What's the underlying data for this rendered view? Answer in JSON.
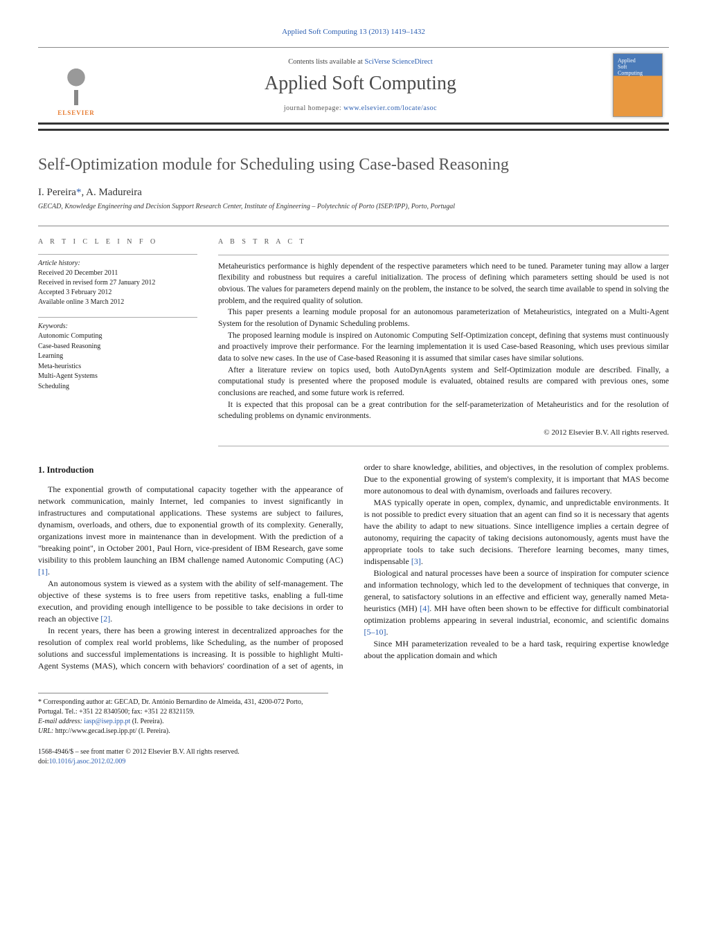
{
  "header": {
    "citation": "Applied Soft Computing 13 (2013) 1419–1432",
    "contents_prefix": "Contents lists available at ",
    "contents_link": "SciVerse ScienceDirect",
    "journal_title": "Applied Soft Computing",
    "homepage_prefix": "journal homepage: ",
    "homepage_url": "www.elsevier.com/locate/asoc",
    "publisher_logo_text": "ELSEVIER"
  },
  "article": {
    "title": "Self-Optimization module for Scheduling using Case-based Reasoning",
    "authors_html": "I. Pereira",
    "corr_mark": "*",
    "author2": ", A. Madureira",
    "affiliation": "GECAD, Knowledge Engineering and Decision Support Research Center, Institute of Engineering – Polytechnic of Porto (ISEP/IPP), Porto, Portugal"
  },
  "info": {
    "label": "a r t i c l e   i n f o",
    "history_head": "Article history:",
    "received": "Received 20 December 2011",
    "revised": "Received in revised form 27 January 2012",
    "accepted": "Accepted 3 February 2012",
    "online": "Available online 3 March 2012",
    "keywords_head": "Keywords:",
    "keywords": [
      "Autonomic Computing",
      "Case-based Reasoning",
      "Learning",
      "Meta-heuristics",
      "Multi-Agent Systems",
      "Scheduling"
    ]
  },
  "abstract": {
    "label": "a b s t r a c t",
    "paragraphs": [
      "Metaheuristics performance is highly dependent of the respective parameters which need to be tuned. Parameter tuning may allow a larger flexibility and robustness but requires a careful initialization. The process of defining which parameters setting should be used is not obvious. The values for parameters depend mainly on the problem, the instance to be solved, the search time available to spend in solving the problem, and the required quality of solution.",
      "This paper presents a learning module proposal for an autonomous parameterization of Metaheuristics, integrated on a Multi-Agent System for the resolution of Dynamic Scheduling problems.",
      "The proposed learning module is inspired on Autonomic Computing Self-Optimization concept, defining that systems must continuously and proactively improve their performance. For the learning implementation it is used Case-based Reasoning, which uses previous similar data to solve new cases. In the use of Case-based Reasoning it is assumed that similar cases have similar solutions.",
      "After a literature review on topics used, both AutoDynAgents system and Self-Optimization module are described. Finally, a computational study is presented where the proposed module is evaluated, obtained results are compared with previous ones, some conclusions are reached, and some future work is referred.",
      "It is expected that this proposal can be a great contribution for the self-parameterization of Metaheuristics and for the resolution of scheduling problems on dynamic environments."
    ],
    "copyright": "© 2012 Elsevier B.V. All rights reserved."
  },
  "body": {
    "section_heading": "1.  Introduction",
    "p1": "The exponential growth of computational capacity together with the appearance of network communication, mainly Internet, led companies to invest significantly in infrastructures and computational applications. These systems are subject to failures, dynamism, overloads, and others, due to exponential growth of its complexity. Generally, organizations invest more in maintenance than in development. With the prediction of a \"breaking point\", in October 2001, Paul Horn, vice-president of IBM Research, gave some visibility to this problem launching an IBM challenge named Autonomic Computing (AC) ",
    "r1": "[1]",
    "p1_tail": ".",
    "p2": "An autonomous system is viewed as a system with the ability of self-management. The objective of these systems is to free users from repetitive tasks, enabling a full-time execution, and providing enough intelligence to be possible to take decisions in order to reach an objective ",
    "r2": "[2]",
    "p2_tail": ".",
    "p3": "In recent years, there has been a growing interest in decentralized approaches for the resolution of complex real world problems, like Scheduling, as the number of proposed solutions and successful implementations is increasing. It is possible to highlight Multi-Agent Systems (MAS), which concern with behaviors' coordination of a set of agents, in order to share knowledge, abilities, and objectives, in the resolution of complex problems. Due to the exponential growing of system's complexity, it is important that MAS become more autonomous to deal with dynamism, overloads and failures recovery.",
    "p4": "MAS typically operate in open, complex, dynamic, and unpredictable environments. It is not possible to predict every situation that an agent can find so it is necessary that agents have the ability to adapt to new situations. Since intelligence implies a certain degree of autonomy, requiring the capacity of taking decisions autonomously, agents must have the appropriate tools to take such decisions. Therefore learning becomes, many times, indispensable ",
    "r3": "[3]",
    "p4_tail": ".",
    "p5": "Biological and natural processes have been a source of inspiration for computer science and information technology, which led to the development of techniques that converge, in general, to satisfactory solutions in an effective and efficient way, generally named Meta-heuristics (MH) ",
    "r4": "[4]",
    "p5_mid": ". MH have often been shown to be effective for difficult combinatorial optimization problems appearing in several industrial, economic, and scientific domains ",
    "r5": "[5–10]",
    "p5_tail": ".",
    "p6": "Since MH parameterization revealed to be a hard task, requiring expertise knowledge about the application domain and which"
  },
  "footnotes": {
    "corr": "* Corresponding author at: GECAD, Dr. António Bernardino de Almeida, 431, 4200-072 Porto, Portugal. Tel.: +351 22 8340500; fax: +351 22 8321159.",
    "email_label": "E-mail address: ",
    "email": "iasp@isep.ipp.pt",
    "email_tail": " (I. Pereira).",
    "url_label": "URL: ",
    "url": "http://www.gecad.isep.ipp.pt/",
    "url_tail": " (I. Pereira)."
  },
  "footer": {
    "front_matter": "1568-4946/$ – see front matter © 2012 Elsevier B.V. All rights reserved.",
    "doi_label": "doi:",
    "doi": "10.1016/j.asoc.2012.02.009"
  },
  "colors": {
    "link": "#2a5db0",
    "text": "#1a1a1a",
    "heading_gray": "#555555",
    "publisher_orange": "#e67a2e"
  }
}
